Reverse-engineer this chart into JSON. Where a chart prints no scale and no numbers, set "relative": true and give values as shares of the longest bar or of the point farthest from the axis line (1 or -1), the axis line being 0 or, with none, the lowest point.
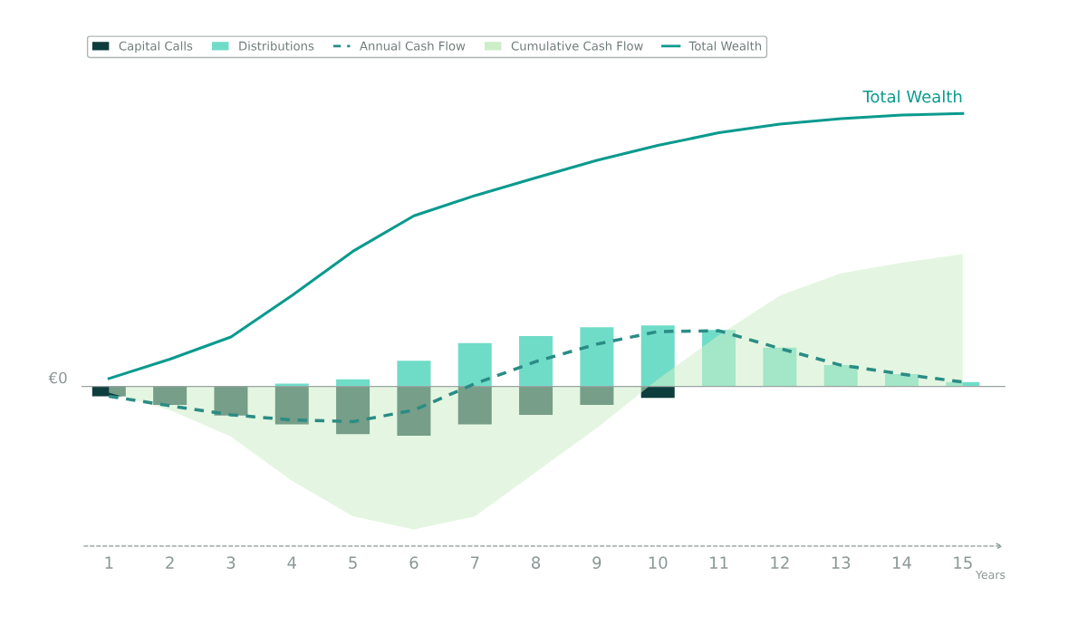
{
  "chart_data": {
    "type": "bar",
    "relative": true,
    "xlabel": "Years",
    "categories": [
      "1",
      "2",
      "3",
      "4",
      "5",
      "6",
      "7",
      "8",
      "9",
      "10",
      "11",
      "12",
      "13",
      "14",
      "15"
    ],
    "series": [
      {
        "name": "Capital Calls",
        "type": "bar",
        "color": "#0d3d3d",
        "values": [
          -0.036,
          -0.068,
          -0.107,
          -0.139,
          -0.175,
          -0.181,
          -0.139,
          -0.104,
          -0.068,
          -0.042,
          0,
          0,
          0,
          0,
          0
        ]
      },
      {
        "name": "Distributions",
        "type": "bar",
        "color": "#6fdcc8",
        "values": [
          0,
          0,
          0,
          0.01,
          0.026,
          0.094,
          0.159,
          0.184,
          0.217,
          0.223,
          0.207,
          0.142,
          0.078,
          0.045,
          0.016
        ]
      },
      {
        "name": "Annual Cash Flow",
        "type": "line",
        "line_style": "dashed",
        "color": "#2a8c85",
        "values": [
          -0.036,
          -0.071,
          -0.104,
          -0.123,
          -0.129,
          -0.087,
          0.01,
          0.091,
          0.155,
          0.201,
          0.204,
          0.139,
          0.078,
          0.045,
          0.016
        ]
      },
      {
        "name": "Cumulative Cash Flow",
        "type": "area",
        "color": "#cdeec8",
        "values": [
          -0.023,
          -0.087,
          -0.184,
          -0.346,
          -0.476,
          -0.524,
          -0.476,
          -0.314,
          -0.152,
          0.026,
          0.188,
          0.333,
          0.414,
          0.453,
          0.485
        ]
      },
      {
        "name": "Total Wealth",
        "type": "line",
        "line_style": "solid",
        "color": "#0a9a8e",
        "values": [
          0.029,
          0.1,
          0.181,
          0.333,
          0.495,
          0.625,
          0.699,
          0.764,
          0.828,
          0.883,
          0.929,
          0.961,
          0.981,
          0.994,
          1
        ]
      }
    ],
    "ref_lines": [
      {
        "axis": "y",
        "value": 0,
        "label": "€0",
        "color": "#9aa5a3"
      }
    ],
    "annotations": [
      {
        "text": "Total Wealth",
        "x": "15",
        "y": 1
      }
    ],
    "legend": "top left",
    "grid": false,
    "marker": "none"
  }
}
